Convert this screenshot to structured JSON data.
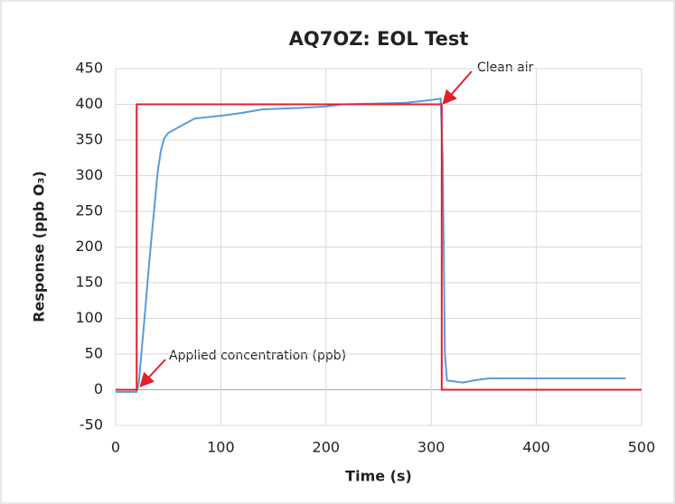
{
  "chart_data": {
    "type": "line",
    "title": "AQ7OZ: EOL Test",
    "x_label": "Time (s)",
    "y_label": "Response (ppb O₃)",
    "xlim": [
      0,
      500
    ],
    "xticks": [
      0,
      100,
      200,
      300,
      400,
      500
    ],
    "ylim": [
      -50,
      450
    ],
    "yticks": [
      -50,
      0,
      50,
      100,
      150,
      200,
      250,
      300,
      350,
      400,
      450
    ],
    "grid": true,
    "series": [
      {
        "color": "#5b9bd5",
        "x": [
          0,
          20,
          22,
          25,
          28,
          32,
          36,
          40,
          43,
          46,
          50,
          60,
          75,
          100,
          120,
          140,
          175,
          200,
          215,
          275,
          300,
          309,
          311,
          313,
          315,
          330,
          340,
          355,
          485
        ],
        "values": [
          -3,
          -3,
          10,
          60,
          110,
          180,
          243,
          306,
          335,
          352,
          360,
          368,
          380,
          384,
          388,
          393,
          395,
          397,
          400,
          402,
          406,
          408,
          320,
          50,
          13,
          10,
          13,
          16,
          16
        ]
      },
      {
        "color": "#e0202a",
        "x": [
          0,
          20,
          20,
          310,
          310,
          500
        ],
        "values": [
          0,
          0,
          400,
          400,
          0,
          0
        ]
      }
    ],
    "annotations": [
      "Clean air",
      "Applied concentration (ppb)"
    ]
  }
}
